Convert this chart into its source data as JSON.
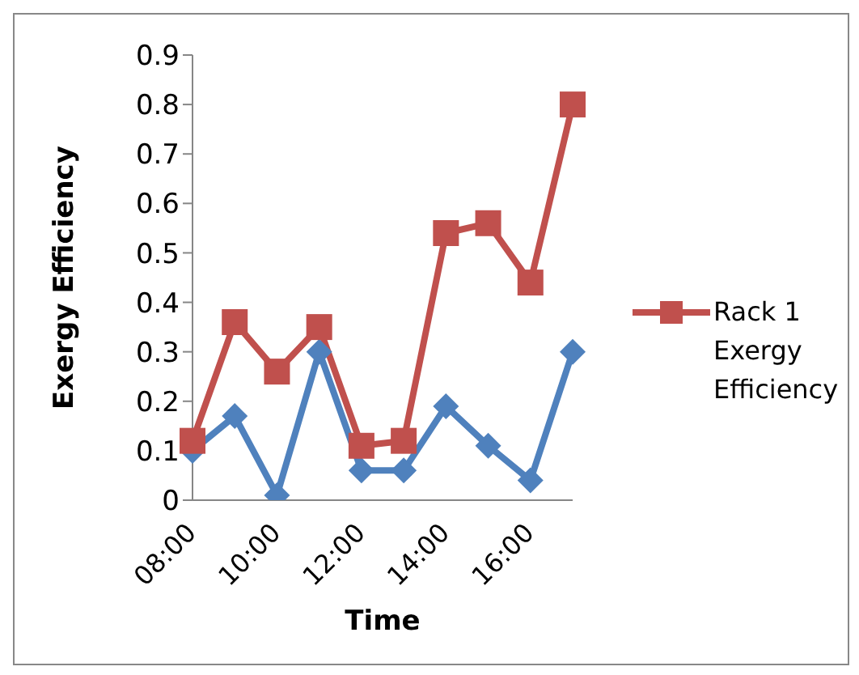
{
  "chart_data": {
    "type": "line",
    "xlabel": "Time",
    "ylabel": "Exergy Efficiency",
    "categories": [
      "08:00",
      null,
      "10:00",
      null,
      "12:00",
      null,
      "14:00",
      null,
      "16:00",
      null
    ],
    "series": [
      {
        "color": "#4f81bd",
        "marker": "diamond",
        "values": [
          0.1,
          0.17,
          0.01,
          0.3,
          0.06,
          0.06,
          0.19,
          0.11,
          0.04,
          0.3
        ]
      },
      {
        "name": "Rack 1 Exergy Efficiency",
        "color": "#c0504d",
        "marker": "square",
        "values": [
          0.12,
          0.36,
          0.26,
          0.35,
          0.11,
          0.12,
          0.54,
          0.56,
          0.44,
          0.8
        ]
      }
    ],
    "ylim": [
      0,
      0.9
    ],
    "yticks": [
      0,
      0.1,
      0.2,
      0.3,
      0.4,
      0.5,
      0.6,
      0.7,
      0.8,
      0.9
    ],
    "grid": false,
    "legend": "right"
  }
}
